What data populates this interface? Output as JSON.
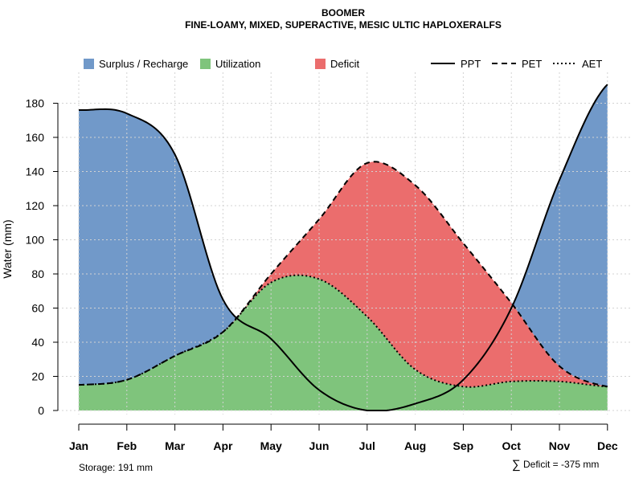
{
  "chart_data": {
    "type": "area",
    "title": "BOOMER",
    "subtitle": "FINE-LOAMY, MIXED, SUPERACTIVE, MESIC ULTIC HAPLOXERALFS",
    "ylabel": "Water (mm)",
    "xlabel": "",
    "ylim": [
      0,
      190
    ],
    "yticks": [
      0,
      20,
      40,
      60,
      80,
      100,
      120,
      140,
      160,
      180
    ],
    "categories": [
      "Jan",
      "Feb",
      "Mar",
      "Apr",
      "May",
      "Jun",
      "Jul",
      "Aug",
      "Sep",
      "Oct",
      "Nov",
      "Dec"
    ],
    "grid": true,
    "series": [
      {
        "name": "PPT",
        "style": "solid",
        "values": [
          176,
          174,
          150,
          65,
          42,
          12,
          0,
          4,
          18,
          60,
          135,
          191
        ]
      },
      {
        "name": "PET",
        "style": "dashed",
        "values": [
          15,
          18,
          32,
          46,
          80,
          112,
          145,
          132,
          98,
          63,
          26,
          14
        ]
      },
      {
        "name": "AET",
        "style": "dotted",
        "values": [
          15,
          18,
          32,
          46,
          75,
          77,
          55,
          24,
          14,
          17,
          17,
          14
        ]
      }
    ],
    "fills": [
      {
        "name": "Surplus / Recharge",
        "color": "#7199c9"
      },
      {
        "name": "Utilization",
        "color": "#7fc47c"
      },
      {
        "name": "Deficit",
        "color": "#eb6d6d"
      }
    ],
    "legend": {
      "placement": "top",
      "surplus_label": "Surplus / Recharge",
      "utilization_label": "Utilization",
      "deficit_label": "Deficit",
      "ppt_label": "PPT",
      "pet_label": "PET",
      "aet_label": "AET"
    },
    "annotations": {
      "storage": "Storage: 191 mm",
      "deficit_sum": "Deficit = -375 mm",
      "sum_symbol": "∑"
    }
  }
}
